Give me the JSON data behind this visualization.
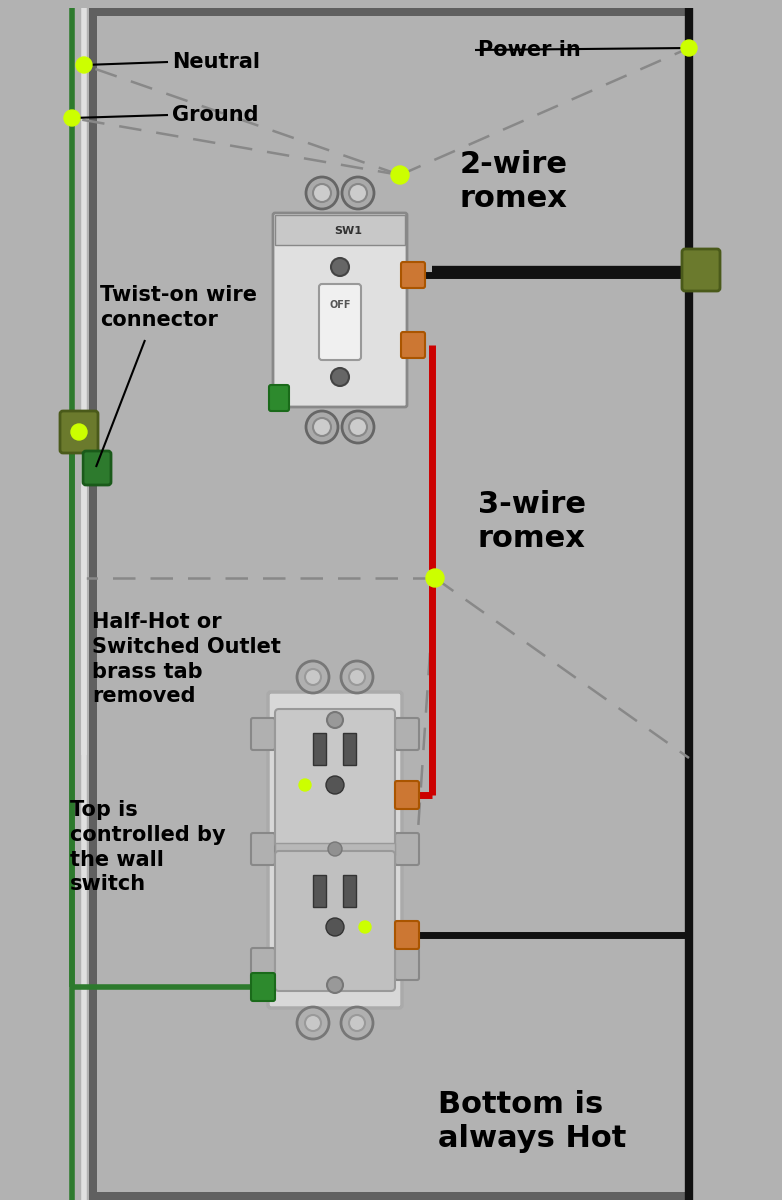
{
  "bg_color": "#b2b2b2",
  "wall_color": "#606060",
  "text_color": "#000000",
  "wire_black": "#111111",
  "wire_white": "#e0e0e0",
  "wire_red": "#cc0000",
  "wire_green": "#2d7a2d",
  "dot_color": "#ccff00",
  "title_2wire": "2-wire\nromex",
  "title_3wire": "3-wire\nromex",
  "label_neutral": "Neutral",
  "label_ground": "Ground",
  "label_powerin": "Power in",
  "label_twist": "Twist-on wire\nconnector",
  "label_halfhot": "Half-Hot or\nSwitched Outlet\nbrass tab\nremoved",
  "label_top": "Top is\ncontrolled by\nthe wall\nswitch",
  "label_bottom": "Bottom is\nalways Hot",
  "fig_width": 7.82,
  "fig_height": 12.0,
  "dpi": 100
}
